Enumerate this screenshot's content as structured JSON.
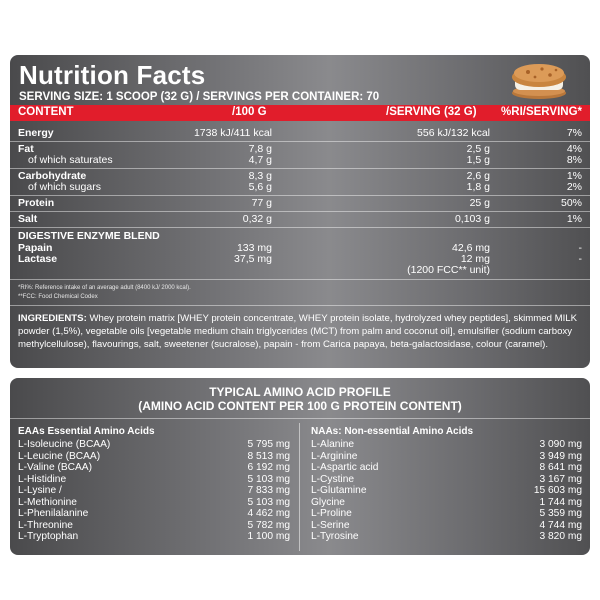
{
  "title": "Nutrition Facts",
  "serving_line": "SERVING SIZE: 1 SCOOP (32 G) / SERVINGS PER CONTAINER: 70",
  "header": {
    "content": "CONTENT",
    "per100": "/100 G",
    "perserving": "/SERVING (32 G)",
    "ri": "%RI/SERVING*"
  },
  "rows": [
    {
      "name": "Energy",
      "per100": "1738 kJ/411 kcal",
      "perserving": "556 kJ/132 kcal",
      "ri": "7%"
    },
    {
      "name": "Fat",
      "per100": "7,8 g",
      "perserving": "2,5 g",
      "ri": "4%"
    },
    {
      "name": "of which saturates",
      "per100": "4,7 g",
      "perserving": "1,5 g",
      "ri": "8%"
    },
    {
      "name": "Carbohydrate",
      "per100": "8,3 g",
      "perserving": "2,6 g",
      "ri": "1%"
    },
    {
      "name": "of which sugars",
      "per100": "5,6 g",
      "perserving": "1,8 g",
      "ri": "2%"
    },
    {
      "name": "Protein",
      "per100": "77 g",
      "perserving": "25 g",
      "ri": "50%"
    },
    {
      "name": "Salt",
      "per100": "0,32 g",
      "perserving": "0,103 g",
      "ri": "1%"
    }
  ],
  "enzyme": {
    "heading": "DIGESTIVE ENZYME BLEND",
    "rows": [
      {
        "name": "Papain",
        "per100": "133 mg",
        "perserving": "42,6 mg",
        "ri": "-"
      },
      {
        "name": "Lactase",
        "per100": "37,5 mg",
        "perserving": "12 mg",
        "ri": "-"
      }
    ],
    "unit_note": "(1200 FCC** unit)"
  },
  "footnotes": {
    "ri": "*RI%: Reference intake of an average adult (8400 kJ/ 2000 kcal).",
    "fcc": "**FCC: Food Chemical Codex"
  },
  "ingredients": {
    "label": "INGREDIENTS:",
    "text": "Whey protein matrix [WHEY protein concentrate, WHEY protein isolate, hydrolyzed whey peptides], skimmed MILK powder (1,5%), vegetable oils [vegetable medium chain triglycerides (MCT) from palm and coconut oil], emulsifier (sodium carboxy methylcellulose), flavourings, salt, sweetener (sucralose), papain - from Carica papaya, beta-galactosidase, colour (caramel)."
  },
  "amino": {
    "title1": "TYPICAL AMINO ACID PROFILE",
    "title2": "(AMINO ACID CONTENT PER 100 G PROTEIN CONTENT)",
    "eaa_heading": "EAAs Essential Amino Acids",
    "naa_heading": "NAAs: Non-essential Amino Acids",
    "eaa": [
      {
        "name": "L-Isoleucine (BCAA)",
        "value": "5 795 mg"
      },
      {
        "name": "L-Leucine (BCAA)",
        "value": "8 513 mg"
      },
      {
        "name": "L-Valine (BCAA)",
        "value": "6 192 mg"
      },
      {
        "name": "L-Histidine",
        "value": "5 103 mg"
      },
      {
        "name": "L-Lysine /",
        "value": "7 833 mg"
      },
      {
        "name": "L-Methionine",
        "value": "5 103 mg"
      },
      {
        "name": "L-Phenilalanine",
        "value": "4 462 mg"
      },
      {
        "name": "L-Threonine",
        "value": "5 782 mg"
      },
      {
        "name": "L-Tryptophan",
        "value": "1 100 mg"
      }
    ],
    "naa": [
      {
        "name": "L-Alanine",
        "value": "3 090 mg"
      },
      {
        "name": "L-Arginine",
        "value": "3 949 mg"
      },
      {
        "name": "L-Aspartic acid",
        "value": "8 641 mg"
      },
      {
        "name": "L-Cystine",
        "value": "3 167 mg"
      },
      {
        "name": "L-Glutamine",
        "value": "15 603 mg"
      },
      {
        "name": "Glycine",
        "value": "1 744 mg"
      },
      {
        "name": "L-Proline",
        "value": "5 359 mg"
      },
      {
        "name": "L-Serine",
        "value": "4 744 mg"
      },
      {
        "name": "L-Tyrosine",
        "value": "3 820 mg"
      }
    ]
  },
  "colors": {
    "accent": "#e11d2b",
    "panel": "#7a7a7d"
  },
  "icon": "cookie-sandwich-icon"
}
